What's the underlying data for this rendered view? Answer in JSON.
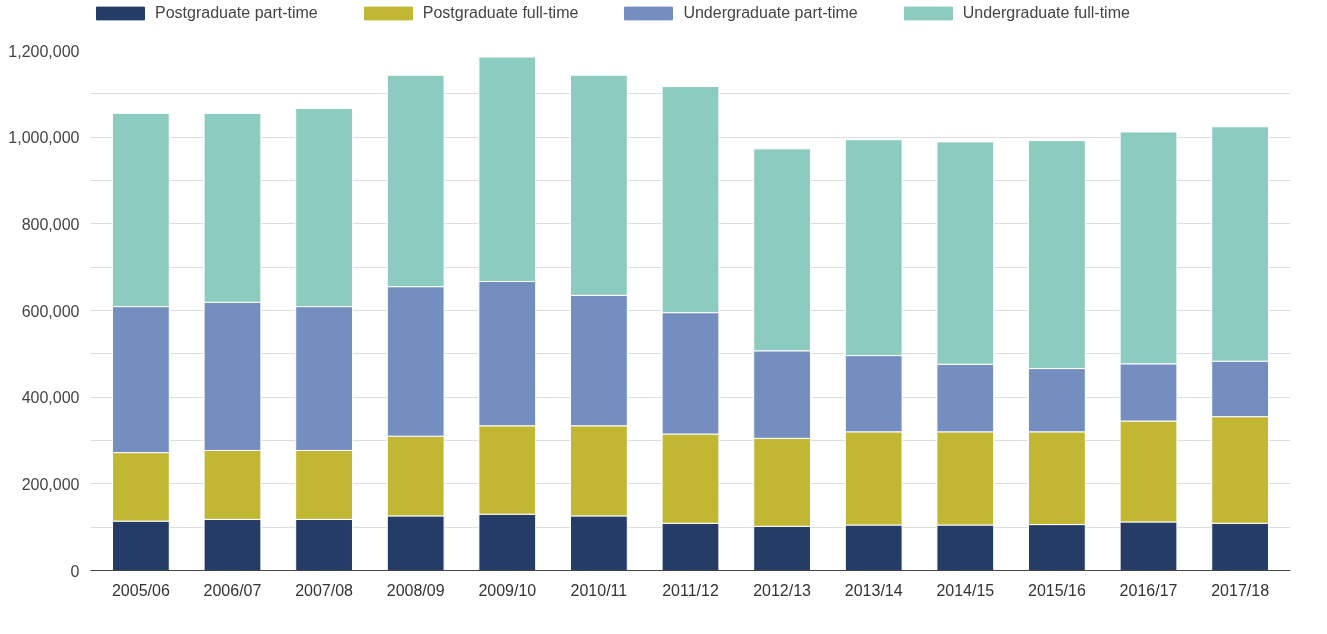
{
  "chart_data": {
    "type": "bar",
    "stacked": true,
    "categories": [
      "2005/06",
      "2006/07",
      "2007/08",
      "2008/09",
      "2009/10",
      "2010/11",
      "2011/12",
      "2012/13",
      "2013/14",
      "2014/15",
      "2015/16",
      "2016/17",
      "2017/18"
    ],
    "series": [
      {
        "name": "Postgraduate part-time",
        "color": "#253d66",
        "values": [
          114000,
          118000,
          118000,
          126000,
          130000,
          126000,
          109000,
          102000,
          105000,
          105000,
          106000,
          112000,
          109000
        ]
      },
      {
        "name": "Postgraduate full-time",
        "color": "#c2b733",
        "values": [
          158000,
          159000,
          159000,
          184000,
          204000,
          208000,
          206000,
          203000,
          215000,
          215000,
          214000,
          233000,
          246000
        ]
      },
      {
        "name": "Undergraduate part-time",
        "color": "#748ebf",
        "values": [
          337000,
          342000,
          332000,
          345000,
          333000,
          301000,
          280000,
          202000,
          176000,
          156000,
          146000,
          132000,
          128000
        ]
      },
      {
        "name": "Undergraduate full-time",
        "color": "#8ccbbf",
        "values": [
          446000,
          436000,
          457000,
          488000,
          518000,
          508000,
          522000,
          466000,
          498000,
          513000,
          526000,
          535000,
          541000
        ]
      }
    ],
    "ylim": [
      0,
      1200000
    ],
    "yticks": [
      0,
      {
        "value": 100000,
        "label": null
      },
      {
        "value": 200000,
        "label": "200,000"
      },
      {
        "value": 300000,
        "label": null
      },
      {
        "value": 400000,
        "label": "400,000"
      },
      {
        "value": 500000,
        "label": null
      },
      {
        "value": 600000,
        "label": "600,000"
      },
      {
        "value": 700000,
        "label": null
      },
      {
        "value": 800000,
        "label": "800,000"
      },
      {
        "value": 900000,
        "label": null
      },
      {
        "value": 1000000,
        "label": "1,000,000"
      },
      {
        "value": 1100000,
        "label": null
      },
      {
        "value": 1200000,
        "label": "1,200,000"
      }
    ],
    "grid": "y",
    "legend": "top"
  }
}
